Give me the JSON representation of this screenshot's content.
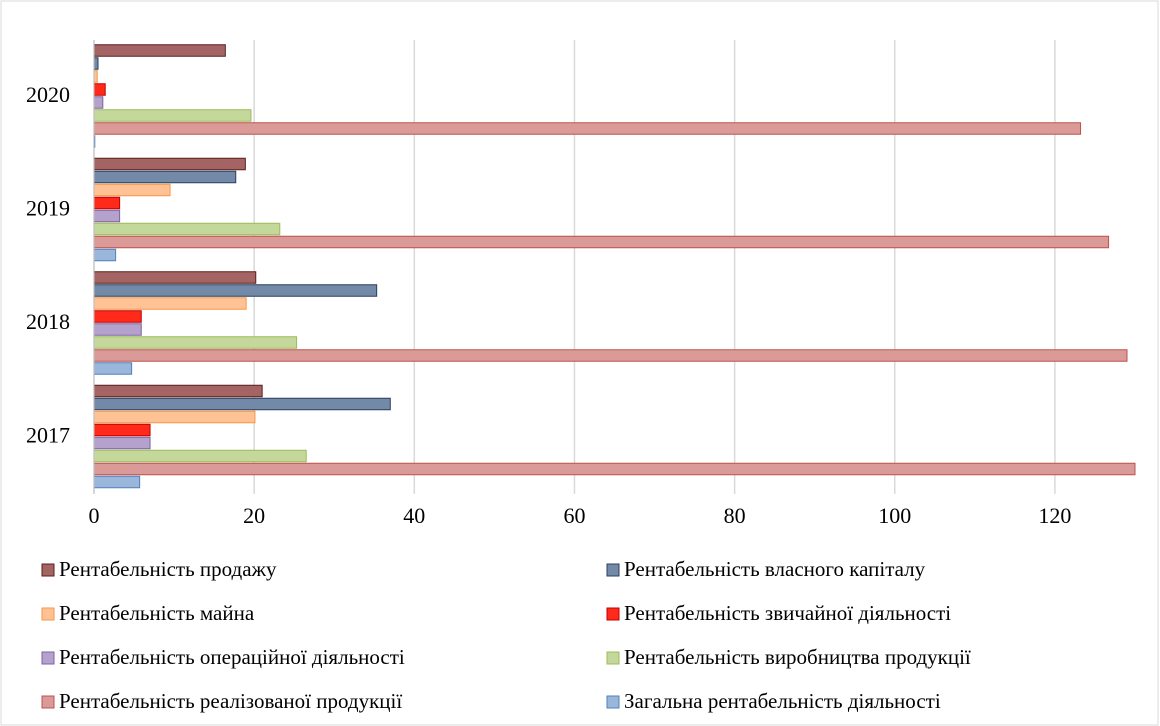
{
  "chart_data": {
    "type": "bar",
    "orientation": "horizontal",
    "categories": [
      "2017",
      "2018",
      "2019",
      "2020"
    ],
    "series": [
      {
        "name": "Рентабельність продажу",
        "color": "#a46464",
        "border": "#5a1e1e",
        "values": [
          21.0,
          20.2,
          18.9,
          16.4
        ]
      },
      {
        "name": "Рентабельність власного капіталу",
        "color": "#7389a8",
        "border": "#2a3f5f",
        "values": [
          37.0,
          35.3,
          17.7,
          0.5
        ]
      },
      {
        "name": "Рентабельність майна",
        "color": "#ffc295",
        "border": "#f79646",
        "values": [
          20.1,
          19.0,
          9.5,
          0.4
        ]
      },
      {
        "name": "Рентабельність звичайної діяльності",
        "color": "#ff2a1a",
        "border": "#c00000",
        "values": [
          7.0,
          5.9,
          3.2,
          1.4
        ]
      },
      {
        "name": "Рентабельність операційної діяльності",
        "color": "#b4a2cc",
        "border": "#7f62a0",
        "values": [
          7.0,
          5.9,
          3.2,
          1.1
        ]
      },
      {
        "name": "Рентабельність виробництва продукції",
        "color": "#c4d89c",
        "border": "#9bbb59",
        "values": [
          26.5,
          25.3,
          23.2,
          19.6
        ]
      },
      {
        "name": "Рентабельність реалізованої продукції",
        "color": "#d99a98",
        "border": "#c0504d",
        "values": [
          130.0,
          129.0,
          126.7,
          123.2
        ]
      },
      {
        "name": "Загальна рентабельність діяльності",
        "color": "#9ab6da",
        "border": "#4f81bd",
        "values": [
          5.7,
          4.7,
          2.7,
          0.1
        ]
      }
    ],
    "xlim": [
      0,
      130
    ],
    "xticks": [
      0,
      20,
      40,
      60,
      80,
      100,
      120
    ],
    "grid": true,
    "legend": "bottom"
  }
}
